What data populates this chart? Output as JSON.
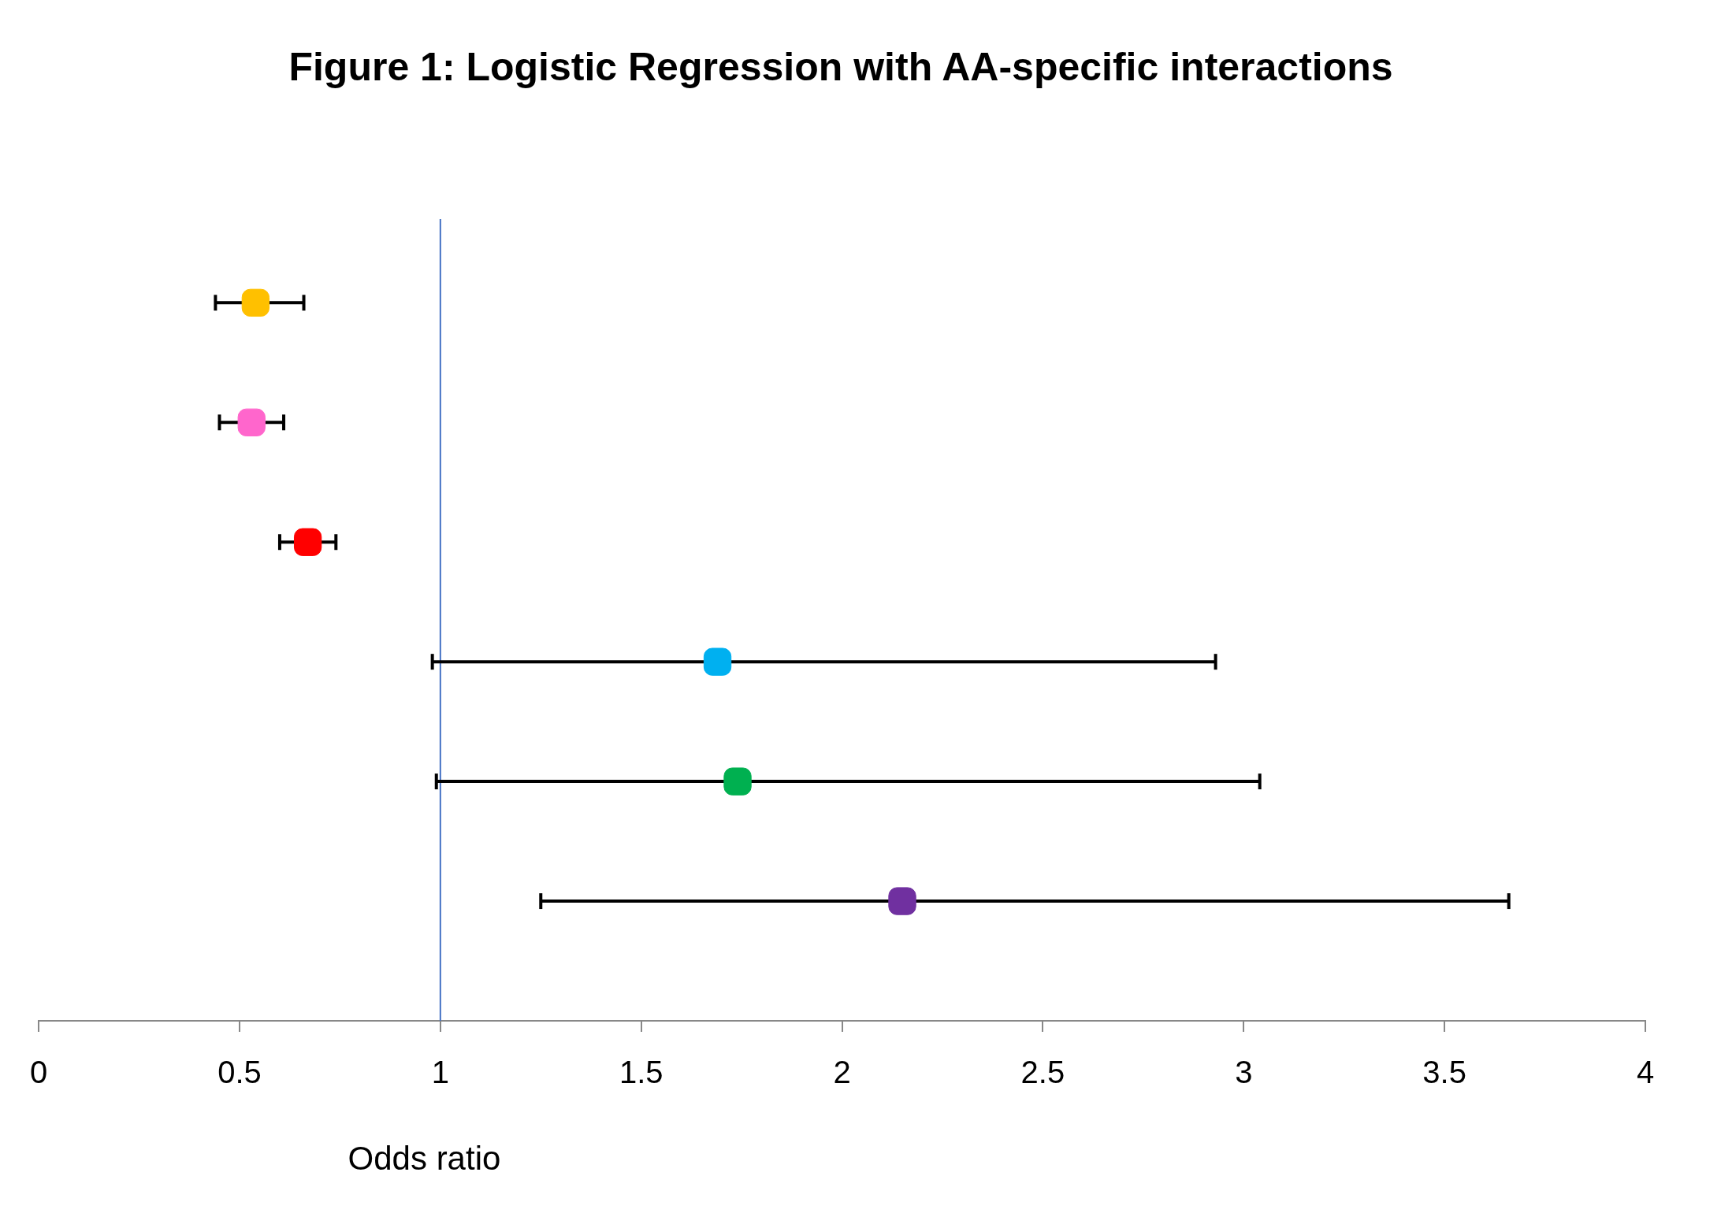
{
  "chart_data": {
    "type": "scatter",
    "title": "Figure 1: Logistic Regression with AA-specific interactions",
    "xlabel": "Odds ratio",
    "orientation": "horizontal",
    "categories": [
      null,
      null,
      null,
      null,
      null,
      null
    ],
    "values": [
      0.54,
      0.53,
      0.67,
      1.69,
      1.74,
      2.15
    ],
    "errors": [
      [
        0.44,
        0.66
      ],
      [
        0.45,
        0.61
      ],
      [
        0.6,
        0.74
      ],
      [
        0.98,
        2.93
      ],
      [
        0.99,
        3.04
      ],
      [
        1.25,
        3.66
      ]
    ],
    "colors": [
      "#ffc000",
      "#ff66cc",
      "#ff0000",
      "#00b0f0",
      "#00b050",
      "#7030a0"
    ],
    "marker": "square",
    "xlim": [
      0,
      4
    ],
    "xticks": [
      0,
      0.5,
      1,
      1.5,
      2,
      2.5,
      3,
      3.5,
      4
    ],
    "tick_labels": "x",
    "grid": false,
    "legend": false,
    "ref_lines": [
      {
        "axis": "x",
        "value": 1,
        "color": "#4472c4"
      }
    ]
  }
}
